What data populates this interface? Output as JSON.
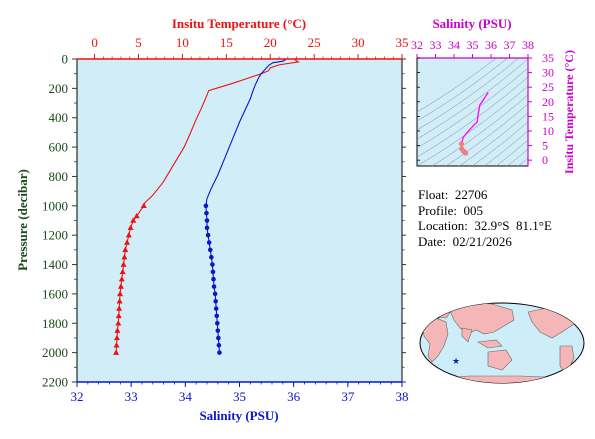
{
  "main_chart": {
    "top_axis_label": "Insitu Temperature (°C)",
    "bottom_axis_label": "Salinity (PSU)",
    "left_axis_label": "Pressure (decibar)",
    "temp_ticks": [
      0,
      5,
      10,
      15,
      20,
      25,
      30,
      35
    ],
    "sal_ticks": [
      32,
      33,
      34,
      35,
      36,
      37,
      38
    ],
    "pressure_ticks": [
      0,
      200,
      400,
      600,
      800,
      1000,
      1200,
      1400,
      1600,
      1800,
      2000,
      2200
    ]
  },
  "ts_chart": {
    "top_axis_label": "Salinity (PSU)",
    "right_axis_label": "Insitu Temperature (°C)",
    "sal_ticks": [
      32,
      33,
      34,
      35,
      36,
      37,
      38
    ],
    "temp_ticks": [
      0,
      5,
      10,
      15,
      20,
      25,
      30,
      35
    ]
  },
  "info": {
    "float": "Float:  22706",
    "profile": "Profile:  005",
    "location": "Location:  32.9°S  81.1°E",
    "date": "Date:  02/21/2026"
  },
  "colors": {
    "plot_bg": "#d1eef8",
    "temperature": "#ee1111",
    "salinity": "#0b16c9",
    "ts_axis": "#cc00cc",
    "ts_line": "#ff00ff",
    "ts_deep": "#f08080",
    "pressure_axis": "#1a4a1a",
    "land": "#f4b6b6",
    "ocean": "#cdeef8"
  },
  "chart_data": [
    {
      "type": "line",
      "title": "",
      "ylabel": "Pressure (decibar)",
      "ylim": [
        0,
        2200
      ],
      "y_inverted": true,
      "grid": false,
      "series": [
        {
          "name": "Insitu Temperature (°C)",
          "axis": "top",
          "xlim": [
            -2,
            35
          ],
          "points": [
            [
              22.8,
              5
            ],
            [
              23.2,
              20
            ],
            [
              21.0,
              40
            ],
            [
              20.0,
              60
            ],
            [
              19.8,
              80
            ],
            [
              19.0,
              100
            ],
            [
              17.5,
              130
            ],
            [
              15.5,
              170
            ],
            [
              13.0,
              215
            ],
            [
              12.7,
              260
            ],
            [
              12.2,
              330
            ],
            [
              11.5,
              420
            ],
            [
              10.8,
              520
            ],
            [
              10.2,
              600
            ],
            [
              9.4,
              680
            ],
            [
              8.6,
              760
            ],
            [
              7.8,
              840
            ],
            [
              6.6,
              930
            ],
            [
              5.7,
              980
            ],
            [
              5.6,
              1000
            ],
            [
              4.8,
              1070
            ],
            [
              4.4,
              1100
            ],
            [
              4.1,
              1150
            ],
            [
              3.9,
              1200
            ],
            [
              3.7,
              1250
            ],
            [
              3.5,
              1300
            ],
            [
              3.4,
              1350
            ],
            [
              3.3,
              1400
            ],
            [
              3.2,
              1450
            ],
            [
              3.1,
              1500
            ],
            [
              3.0,
              1550
            ],
            [
              2.9,
              1600
            ],
            [
              2.85,
              1650
            ],
            [
              2.8,
              1700
            ],
            [
              2.75,
              1750
            ],
            [
              2.7,
              1800
            ],
            [
              2.6,
              1850
            ],
            [
              2.55,
              1900
            ],
            [
              2.5,
              1950
            ],
            [
              2.45,
              2000
            ]
          ],
          "marker_from_pressure": 1000
        },
        {
          "name": "Salinity (PSU)",
          "axis": "bottom",
          "xlim": [
            32,
            38
          ],
          "points": [
            [
              35.85,
              5
            ],
            [
              35.8,
              15
            ],
            [
              35.62,
              25
            ],
            [
              35.55,
              40
            ],
            [
              35.5,
              60
            ],
            [
              35.45,
              80
            ],
            [
              35.4,
              100
            ],
            [
              35.35,
              130
            ],
            [
              35.3,
              170
            ],
            [
              35.25,
              215
            ],
            [
              35.2,
              270
            ],
            [
              35.1,
              350
            ],
            [
              35.0,
              430
            ],
            [
              34.9,
              520
            ],
            [
              34.8,
              610
            ],
            [
              34.7,
              700
            ],
            [
              34.6,
              790
            ],
            [
              34.48,
              880
            ],
            [
              34.4,
              950
            ],
            [
              34.38,
              1000
            ],
            [
              34.39,
              1050
            ],
            [
              34.4,
              1100
            ],
            [
              34.4,
              1150
            ],
            [
              34.42,
              1200
            ],
            [
              34.44,
              1250
            ],
            [
              34.46,
              1300
            ],
            [
              34.48,
              1350
            ],
            [
              34.5,
              1400
            ],
            [
              34.51,
              1450
            ],
            [
              34.52,
              1500
            ],
            [
              34.53,
              1550
            ],
            [
              34.55,
              1600
            ],
            [
              34.56,
              1650
            ],
            [
              34.57,
              1700
            ],
            [
              34.58,
              1750
            ],
            [
              34.59,
              1800
            ],
            [
              34.6,
              1850
            ],
            [
              34.61,
              1900
            ],
            [
              34.62,
              1950
            ],
            [
              34.63,
              2000
            ]
          ],
          "marker_from_pressure": 1000
        }
      ]
    },
    {
      "type": "scatter",
      "title": "",
      "xlabel": "Salinity (PSU)",
      "ylabel": "Insitu Temperature (°C)",
      "xlim": [
        32,
        38
      ],
      "ylim": [
        -2,
        35
      ],
      "grid": false,
      "series": [
        {
          "points": [
            [
              35.85,
              23.2
            ],
            [
              35.62,
              21.0
            ],
            [
              35.5,
              19.8
            ],
            [
              35.4,
              19.0
            ],
            [
              35.3,
              15.5
            ],
            [
              35.25,
              13.0
            ],
            [
              35.1,
              12.2
            ],
            [
              34.9,
              10.8
            ],
            [
              34.7,
              9.4
            ],
            [
              34.5,
              7.8
            ],
            [
              34.4,
              5.6
            ],
            [
              34.42,
              3.9
            ],
            [
              34.5,
              3.2
            ],
            [
              34.55,
              2.9
            ],
            [
              34.6,
              2.6
            ],
            [
              34.63,
              2.45
            ]
          ]
        }
      ]
    }
  ]
}
